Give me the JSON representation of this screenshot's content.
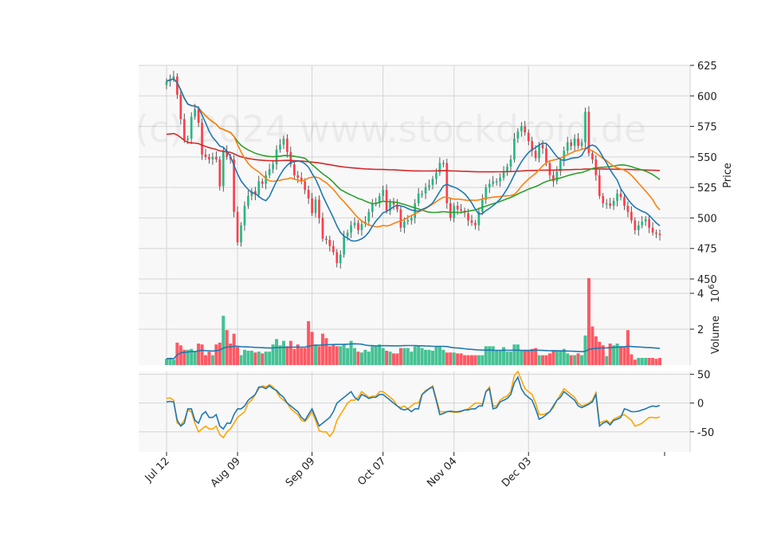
{
  "chart_data": {
    "type": "candlestick",
    "watermark": "(c) 2024 www.stockdroid.de",
    "x_tick_labels": [
      "Jul 12",
      "Aug 09",
      "Sep 09",
      "Oct 07",
      "Nov 04",
      "Dec 03"
    ],
    "price_panel": {
      "ylabel": "Price",
      "ylim": [
        450,
        625
      ],
      "yticks": [
        450,
        475,
        500,
        525,
        550,
        575,
        600,
        625
      ],
      "close": [
        612,
        614,
        616,
        601,
        581,
        564,
        565,
        583,
        589,
        578,
        552,
        550,
        548,
        550,
        548,
        526,
        555,
        550,
        548,
        505,
        480,
        494,
        510,
        518,
        522,
        519,
        530,
        528,
        535,
        540,
        544,
        556,
        560,
        565,
        554,
        544,
        535,
        533,
        530,
        523,
        516,
        504,
        515,
        500,
        483,
        482,
        477,
        472,
        463,
        470,
        485,
        488,
        494,
        496,
        490,
        495,
        497,
        505,
        512,
        512,
        518,
        523,
        506,
        513,
        511,
        507,
        492,
        497,
        498,
        500,
        512,
        520,
        520,
        525,
        527,
        532,
        537,
        545,
        545,
        512,
        500,
        510,
        507,
        506,
        504,
        498,
        496,
        494,
        505,
        515,
        525,
        528,
        530,
        530,
        533,
        538,
        542,
        548,
        565,
        571,
        575,
        570,
        563,
        555,
        549,
        560,
        557,
        545,
        535,
        530,
        538,
        547,
        555,
        562,
        559,
        565,
        559,
        562,
        587,
        553,
        548,
        535,
        518,
        512,
        512,
        510,
        514,
        520,
        517,
        510,
        505,
        498,
        490,
        494,
        497,
        499,
        492,
        488,
        487,
        486
      ],
      "colors": {
        "up": "#26b883",
        "down": "#ff3d4a",
        "ma_short": "#1f77b4",
        "ma_mid": "#ff7f0e",
        "ma_long": "#2ca02c",
        "ma_xlong": "#d62728"
      }
    },
    "volume_panel": {
      "ylabel": "Volume",
      "yunit": "10^6",
      "ylim": [
        0,
        4.8
      ],
      "yticks": [
        2,
        4
      ],
      "volume": [
        0.35,
        0.4,
        0.3,
        1.25,
        1.1,
        0.85,
        0.85,
        0.9,
        0.75,
        1.2,
        1.15,
        0.55,
        0.75,
        0.55,
        1.15,
        1.25,
        2.75,
        1.95,
        1.2,
        1.75,
        1.0,
        0.55,
        0.85,
        0.8,
        0.8,
        0.7,
        0.75,
        0.65,
        0.75,
        0.75,
        1.15,
        1.45,
        1.1,
        1.35,
        1.05,
        1.35,
        0.9,
        1.15,
        0.95,
        0.95,
        2.45,
        1.85,
        1.15,
        1.05,
        1.75,
        1.5,
        1.05,
        1.15,
        1.05,
        1.05,
        1.15,
        0.95,
        1.35,
        0.95,
        0.75,
        0.7,
        0.85,
        0.75,
        1.05,
        1.1,
        1.15,
        0.95,
        0.8,
        0.75,
        0.65,
        0.65,
        0.95,
        0.95,
        0.95,
        0.75,
        1.05,
        1.05,
        0.95,
        0.85,
        0.85,
        0.8,
        1.05,
        1.05,
        0.85,
        0.7,
        0.7,
        0.7,
        0.65,
        0.65,
        0.55,
        0.55,
        0.55,
        0.55,
        0.55,
        0.55,
        1.05,
        1.05,
        1.05,
        0.8,
        0.8,
        1.0,
        0.75,
        0.75,
        1.15,
        1.15,
        0.8,
        0.8,
        0.8,
        0.9,
        0.95,
        0.55,
        0.55,
        0.55,
        0.65,
        0.8,
        0.8,
        0.8,
        0.9,
        0.65,
        0.55,
        0.55,
        0.65,
        0.55,
        1.65,
        4.85,
        2.15,
        1.6,
        1.3,
        1.1,
        0.5,
        1.2,
        1.1,
        1.2,
        1.05,
        1.0,
        1.95,
        0.6,
        0.3,
        0.4,
        0.4,
        0.4,
        0.4,
        0.4,
        0.35,
        0.4
      ],
      "avg_color": "#1f77b4"
    },
    "oscillator_panel": {
      "ylim": [
        -85,
        55
      ],
      "yticks": [
        -50,
        0,
        50
      ],
      "line1": [
        2,
        3,
        2,
        -30,
        -40,
        -35,
        -10,
        -10,
        -30,
        -35,
        -20,
        -15,
        -25,
        -25,
        -20,
        -40,
        -45,
        -35,
        -35,
        -20,
        -10,
        -10,
        -5,
        5,
        10,
        15,
        28,
        28,
        25,
        30,
        25,
        22,
        15,
        10,
        0,
        -5,
        -10,
        -15,
        -25,
        -30,
        -20,
        -10,
        -25,
        -40,
        -35,
        -30,
        -25,
        -15,
        0,
        5,
        10,
        15,
        20,
        10,
        5,
        15,
        12,
        8,
        10,
        10,
        15,
        15,
        10,
        5,
        0,
        -5,
        -10,
        -12,
        -10,
        -15,
        -10,
        -10,
        15,
        20,
        25,
        28,
        5,
        -20,
        -18,
        -15,
        -14,
        -15,
        -15,
        -14,
        -12,
        -12,
        -10,
        -10,
        -5,
        -5,
        20,
        25,
        -10,
        -8,
        2,
        5,
        8,
        15,
        35,
        45,
        25,
        15,
        10,
        5,
        -10,
        -28,
        -25,
        -20,
        -15,
        -5,
        5,
        10,
        20,
        15,
        10,
        5,
        -5,
        -8,
        -5,
        -2,
        2,
        15,
        -40,
        -35,
        -32,
        -38,
        -30,
        -28,
        -25,
        -10,
        -12,
        -15,
        -15,
        -14,
        -12,
        -10,
        -7,
        -5,
        -6,
        -4
      ],
      "line2": [
        8,
        9,
        5,
        -35,
        -38,
        -30,
        -12,
        -15,
        -35,
        -50,
        -45,
        -40,
        -45,
        -45,
        -40,
        -55,
        -60,
        -50,
        -45,
        -35,
        -25,
        -20,
        -15,
        0,
        5,
        15,
        25,
        30,
        28,
        32,
        28,
        20,
        10,
        5,
        0,
        -10,
        -15,
        -20,
        -30,
        -32,
        -25,
        -15,
        -30,
        -48,
        -50,
        -50,
        -58,
        -50,
        -30,
        -20,
        -10,
        0,
        5,
        5,
        10,
        20,
        15,
        10,
        12,
        12,
        20,
        20,
        15,
        10,
        5,
        -5,
        -8,
        -5,
        -10,
        -5,
        0,
        0,
        15,
        22,
        25,
        30,
        8,
        -15,
        -15,
        -15,
        -15,
        -16,
        -16,
        -15,
        -12,
        -10,
        -5,
        0,
        0,
        -2,
        20,
        28,
        -5,
        -5,
        5,
        10,
        12,
        20,
        48,
        55,
        40,
        25,
        20,
        15,
        0,
        -20,
        -20,
        -18,
        -15,
        -8,
        5,
        15,
        25,
        20,
        15,
        10,
        0,
        -5,
        -3,
        0,
        5,
        18,
        -35,
        -32,
        -30,
        -35,
        -28,
        -25,
        -22,
        -20,
        -25,
        -30,
        -40,
        -38,
        -35,
        -30,
        -25,
        -25,
        -26,
        -24
      ],
      "colors": {
        "line1": "#1f77b4",
        "line2": "#ffa500"
      }
    }
  }
}
